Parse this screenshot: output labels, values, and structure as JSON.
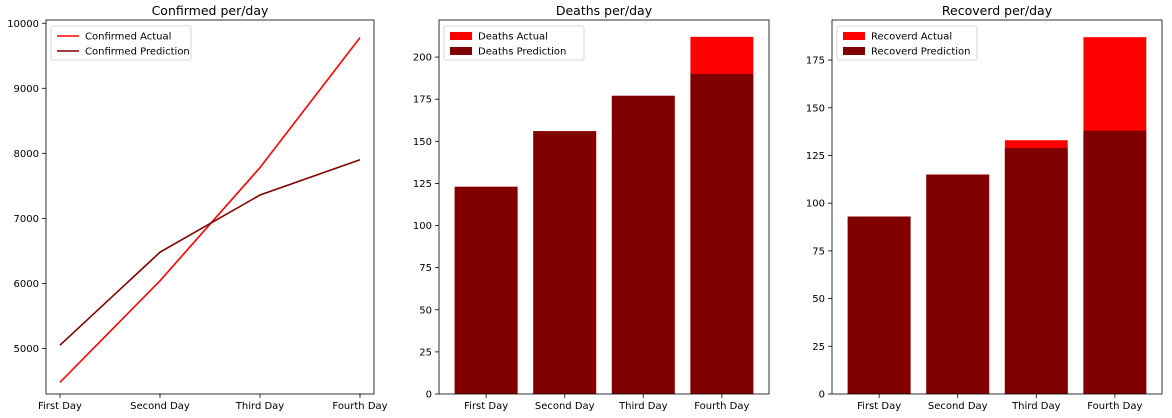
{
  "chart_data": [
    {
      "type": "line",
      "title": "Confirmed per/day",
      "categories": [
        "First Day",
        "Second Day",
        "Third Day",
        "Fourth Day"
      ],
      "series": [
        {
          "name": "Confirmed Actual",
          "values": [
            4480,
            6040,
            7780,
            9780
          ],
          "color": "#ff0000"
        },
        {
          "name": "Confirmed Prediction",
          "values": [
            5050,
            6480,
            7360,
            7900
          ],
          "color": "#800000"
        }
      ],
      "ylim": [
        4300,
        10050
      ],
      "yticks": [
        5000,
        6000,
        7000,
        8000,
        9000,
        10000
      ],
      "legend": "top-left",
      "grid": false
    },
    {
      "type": "bar",
      "title": "Deaths per/day",
      "categories": [
        "First Day",
        "Second Day",
        "Third Day",
        "Fourth Day"
      ],
      "series": [
        {
          "name": "Deaths Actual",
          "values": [
            123,
            156,
            177,
            212
          ],
          "color": "#ff0000"
        },
        {
          "name": "Deaths Prediction",
          "values": [
            123,
            156,
            177,
            190
          ],
          "color": "#800000"
        }
      ],
      "ylim": [
        0,
        222
      ],
      "yticks": [
        0,
        25,
        50,
        75,
        100,
        125,
        150,
        175,
        200
      ],
      "legend": "top-left",
      "grid": false
    },
    {
      "type": "bar",
      "title": "Recoverd per/day",
      "categories": [
        "First Day",
        "Second Day",
        "Third Day",
        "Fourth Day"
      ],
      "series": [
        {
          "name": "Recoverd Actual",
          "values": [
            93,
            115,
            133,
            187
          ],
          "color": "#ff0000"
        },
        {
          "name": "Recoverd Prediction",
          "values": [
            93,
            115,
            129,
            138
          ],
          "color": "#800000"
        }
      ],
      "ylim": [
        0,
        196
      ],
      "yticks": [
        0,
        25,
        50,
        75,
        100,
        125,
        150,
        175
      ],
      "legend": "top-left",
      "grid": false
    }
  ]
}
